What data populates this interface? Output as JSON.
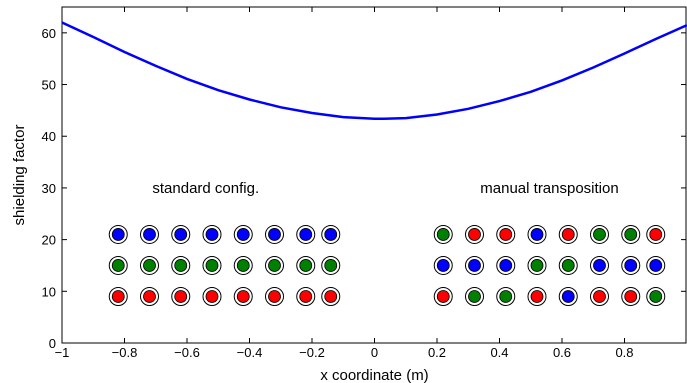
{
  "chart_data": {
    "type": "line",
    "xlabel": "x coordinate (m)",
    "ylabel": "shielding factor",
    "xlim": [
      -1,
      1
    ],
    "ylim": [
      0,
      65
    ],
    "x_ticks": [
      "−1",
      "−0.8",
      "−0.6",
      "−0.4",
      "−0.2",
      "0",
      "0.2",
      "0.4",
      "0.6",
      "0.8"
    ],
    "y_ticks": [
      "0",
      "10",
      "20",
      "30",
      "40",
      "50",
      "60"
    ],
    "grid": false,
    "series": [
      {
        "color": "#0000ff",
        "x": [
          -1.0,
          -0.9,
          -0.8,
          -0.7,
          -0.6,
          -0.5,
          -0.4,
          -0.3,
          -0.2,
          -0.1,
          0.0,
          0.03,
          0.1,
          0.2,
          0.3,
          0.4,
          0.5,
          0.6,
          0.7,
          0.8,
          0.9,
          1.0
        ],
        "y": [
          62.0,
          59.2,
          56.3,
          53.6,
          51.1,
          48.9,
          47.1,
          45.6,
          44.5,
          43.7,
          43.4,
          43.4,
          43.5,
          44.2,
          45.3,
          46.8,
          48.6,
          50.8,
          53.3,
          56.0,
          58.8,
          61.5
        ]
      }
    ],
    "annotations": [
      {
        "text": "standard config.",
        "x": -0.54,
        "y": 30
      },
      {
        "text": "manual transposition",
        "x": 0.56,
        "y": 30
      }
    ],
    "conductor_groups": [
      {
        "name": "standard config.",
        "x": [
          -0.82,
          -0.72,
          -0.62,
          -0.52,
          -0.42,
          -0.32,
          -0.22,
          -0.14
        ],
        "rows": [
          {
            "y": 21,
            "colors": [
              "blue",
              "blue",
              "blue",
              "blue",
              "blue",
              "blue",
              "blue",
              "blue"
            ]
          },
          {
            "y": 15,
            "colors": [
              "green",
              "green",
              "green",
              "green",
              "green",
              "green",
              "green",
              "green"
            ]
          },
          {
            "y": 9,
            "colors": [
              "red",
              "red",
              "red",
              "red",
              "red",
              "red",
              "red",
              "red"
            ]
          }
        ]
      },
      {
        "name": "manual transposition",
        "x": [
          0.22,
          0.32,
          0.42,
          0.52,
          0.62,
          0.72,
          0.82,
          0.9
        ],
        "rows": [
          {
            "y": 21,
            "colors": [
              "green",
              "red",
              "red",
              "blue",
              "red",
              "green",
              "green",
              "red"
            ]
          },
          {
            "y": 15,
            "colors": [
              "blue",
              "blue",
              "blue",
              "green",
              "green",
              "blue",
              "blue",
              "blue"
            ]
          },
          {
            "y": 9,
            "colors": [
              "red",
              "green",
              "green",
              "red",
              "blue",
              "red",
              "red",
              "green"
            ]
          }
        ]
      }
    ],
    "palette": {
      "blue": "#0000ff",
      "green": "#008000",
      "red": "#ff0000"
    }
  }
}
